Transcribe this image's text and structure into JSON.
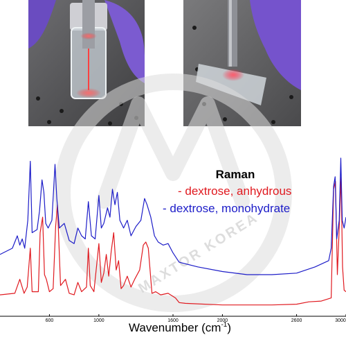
{
  "photos": {
    "left": "photo-vial-laser",
    "right": "photo-slide-laser"
  },
  "watermark": {
    "text": "MAXTOR KOREA",
    "color": "#d9d9d9"
  },
  "legend": {
    "title": "Raman",
    "items": [
      {
        "text": "- dextrose, anhydrous",
        "color": "#e0191f"
      },
      {
        "text": "- dextrose, monohydrate",
        "color": "#1c1cc8"
      }
    ]
  },
  "chart_data": {
    "type": "line",
    "title": "",
    "xlabel": "Wavenumber (cm-1)",
    "xlabel_text": "Wavenumber (cm",
    "xlabel_sup": "-1",
    "xlabel_close": ")",
    "ylabel": "",
    "xlim": [
      200,
      3000
    ],
    "x_ticks": [
      600,
      1000,
      1600,
      2000,
      2600,
      3000
    ],
    "x_tick_labels": [
      "600",
      "1000",
      "1600",
      "2000",
      "2600",
      "3000"
    ],
    "grid": false,
    "series": [
      {
        "name": "dextrose, anhydrous",
        "color": "#e0191f",
        "points": [
          [
            200,
            0.12
          ],
          [
            320,
            0.13
          ],
          [
            360,
            0.22
          ],
          [
            395,
            0.13
          ],
          [
            420,
            0.17
          ],
          [
            445,
            0.42
          ],
          [
            460,
            0.14
          ],
          [
            510,
            0.14
          ],
          [
            525,
            0.52
          ],
          [
            545,
            0.62
          ],
          [
            560,
            0.25
          ],
          [
            575,
            0.22
          ],
          [
            600,
            0.14
          ],
          [
            630,
            0.16
          ],
          [
            650,
            0.56
          ],
          [
            665,
            0.7
          ],
          [
            690,
            0.18
          ],
          [
            730,
            0.22
          ],
          [
            760,
            0.13
          ],
          [
            800,
            0.12
          ],
          [
            830,
            0.2
          ],
          [
            860,
            0.14
          ],
          [
            900,
            0.17
          ],
          [
            915,
            0.42
          ],
          [
            930,
            0.18
          ],
          [
            960,
            0.14
          ],
          [
            1000,
            0.45
          ],
          [
            1020,
            0.2
          ],
          [
            1040,
            0.26
          ],
          [
            1060,
            0.38
          ],
          [
            1080,
            0.24
          ],
          [
            1100,
            0.4
          ],
          [
            1120,
            0.52
          ],
          [
            1140,
            0.28
          ],
          [
            1160,
            0.34
          ],
          [
            1180,
            0.16
          ],
          [
            1200,
            0.18
          ],
          [
            1230,
            0.24
          ],
          [
            1260,
            0.17
          ],
          [
            1290,
            0.22
          ],
          [
            1330,
            0.28
          ],
          [
            1360,
            0.44
          ],
          [
            1380,
            0.46
          ],
          [
            1400,
            0.42
          ],
          [
            1430,
            0.13
          ],
          [
            1460,
            0.14
          ],
          [
            1500,
            0.12
          ],
          [
            1560,
            0.13
          ],
          [
            1620,
            0.1
          ],
          [
            1650,
            0.07
          ],
          [
            1700,
            0.065
          ],
          [
            2000,
            0.055
          ],
          [
            2400,
            0.055
          ],
          [
            2600,
            0.06
          ],
          [
            2700,
            0.075
          ],
          [
            2800,
            0.08
          ],
          [
            2880,
            0.1
          ],
          [
            2900,
            0.8
          ],
          [
            2915,
            0.85
          ],
          [
            2930,
            0.25
          ],
          [
            2945,
            0.55
          ],
          [
            2960,
            0.88
          ],
          [
            2972,
            0.3
          ],
          [
            2985,
            0.15
          ],
          [
            3000,
            0.14
          ]
        ]
      },
      {
        "name": "dextrose, monohydrate",
        "color": "#1c1cc8",
        "points": [
          [
            200,
            0.38
          ],
          [
            300,
            0.42
          ],
          [
            340,
            0.5
          ],
          [
            360,
            0.44
          ],
          [
            380,
            0.48
          ],
          [
            400,
            0.42
          ],
          [
            425,
            0.6
          ],
          [
            445,
            0.98
          ],
          [
            460,
            0.52
          ],
          [
            500,
            0.54
          ],
          [
            520,
            0.66
          ],
          [
            540,
            0.86
          ],
          [
            555,
            0.78
          ],
          [
            570,
            0.58
          ],
          [
            590,
            0.55
          ],
          [
            620,
            0.6
          ],
          [
            645,
            0.96
          ],
          [
            660,
            0.74
          ],
          [
            680,
            0.55
          ],
          [
            720,
            0.58
          ],
          [
            760,
            0.47
          ],
          [
            800,
            0.45
          ],
          [
            830,
            0.55
          ],
          [
            860,
            0.5
          ],
          [
            890,
            0.48
          ],
          [
            915,
            0.72
          ],
          [
            940,
            0.5
          ],
          [
            970,
            0.48
          ],
          [
            1000,
            0.76
          ],
          [
            1020,
            0.55
          ],
          [
            1040,
            0.58
          ],
          [
            1070,
            0.68
          ],
          [
            1090,
            0.62
          ],
          [
            1110,
            0.8
          ],
          [
            1130,
            0.7
          ],
          [
            1150,
            0.78
          ],
          [
            1170,
            0.6
          ],
          [
            1200,
            0.55
          ],
          [
            1230,
            0.6
          ],
          [
            1260,
            0.5
          ],
          [
            1300,
            0.56
          ],
          [
            1340,
            0.6
          ],
          [
            1370,
            0.74
          ],
          [
            1390,
            0.7
          ],
          [
            1420,
            0.62
          ],
          [
            1450,
            0.5
          ],
          [
            1480,
            0.46
          ],
          [
            1520,
            0.44
          ],
          [
            1560,
            0.45
          ],
          [
            1600,
            0.39
          ],
          [
            1650,
            0.33
          ],
          [
            1800,
            0.3
          ],
          [
            2000,
            0.27
          ],
          [
            2200,
            0.25
          ],
          [
            2400,
            0.25
          ],
          [
            2600,
            0.26
          ],
          [
            2750,
            0.3
          ],
          [
            2860,
            0.34
          ],
          [
            2880,
            0.42
          ],
          [
            2900,
            0.82
          ],
          [
            2912,
            0.88
          ],
          [
            2925,
            0.48
          ],
          [
            2945,
            0.6
          ],
          [
            2958,
            1.0
          ],
          [
            2970,
            0.6
          ],
          [
            2985,
            0.55
          ],
          [
            3000,
            0.62
          ]
        ]
      }
    ]
  }
}
